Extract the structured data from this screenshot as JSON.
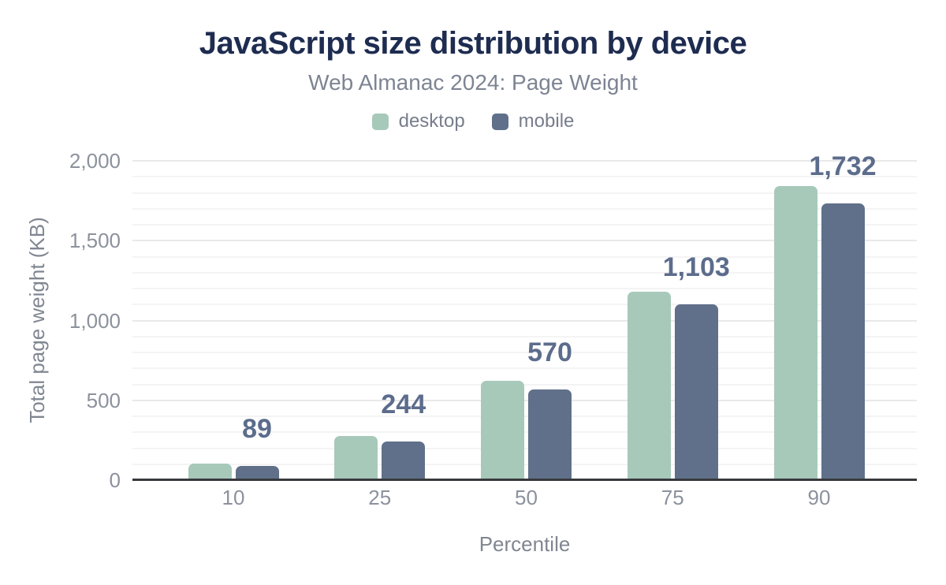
{
  "header": {
    "title": "JavaScript size distribution by device",
    "subtitle": "Web Almanac 2024: Page Weight"
  },
  "chart_data": {
    "type": "bar",
    "title": "JavaScript size distribution by device",
    "subtitle": "Web Almanac 2024: Page Weight",
    "xlabel": "Percentile",
    "ylabel": "Total page weight (KB)",
    "categories": [
      "10",
      "25",
      "50",
      "75",
      "90"
    ],
    "series": [
      {
        "name": "desktop",
        "color": "#a7c9ba",
        "values": [
          104,
          276,
          620,
          1180,
          1840
        ]
      },
      {
        "name": "mobile",
        "color": "#60708a",
        "values": [
          89,
          244,
          570,
          1103,
          1732
        ]
      }
    ],
    "data_labels": {
      "labeled_series": "mobile",
      "values": [
        "89",
        "244",
        "570",
        "1,103",
        "1,732"
      ]
    },
    "ylim": [
      0,
      2000
    ],
    "yticks": [
      {
        "value": 0,
        "label": "0"
      },
      {
        "value": 500,
        "label": "500"
      },
      {
        "value": 1000,
        "label": "1,000"
      },
      {
        "value": 1500,
        "label": "1,500"
      },
      {
        "value": 2000,
        "label": "2,000"
      }
    ],
    "grid": {
      "minor_step": 100,
      "major_step": 500,
      "visible": true
    },
    "legend_position": "top"
  },
  "colors": {
    "background": "#ffffff",
    "title": "#1e2c50",
    "subtitle": "#7d8493",
    "legend_text": "#767d8c",
    "tick_text": "#8c929c",
    "axis_title_text": "#808691",
    "data_label": "#5c6c8c",
    "gridline_minor": "#f4f4f4",
    "gridline_major": "#e9e9e9",
    "baseline": "#37393c",
    "desktop_bar": "#a7c9ba",
    "mobile_bar": "#60708a"
  }
}
